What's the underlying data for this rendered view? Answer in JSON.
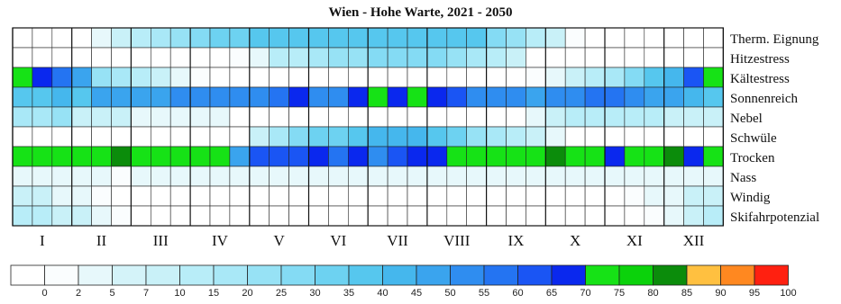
{
  "chart_data": {
    "type": "heatmap",
    "title": "Wien - Hohe Warte, 2021 - 2050",
    "rows": [
      "Therm. Eignung",
      "Hitzestress",
      "Kältestress",
      "Sonnenreich",
      "Nebel",
      "Schwüle",
      "Trocken",
      "Nass",
      "Windig",
      "Skifahrpotenzial"
    ],
    "month_labels": [
      "I",
      "II",
      "III",
      "IV",
      "V",
      "VI",
      "VII",
      "VIII",
      "IX",
      "X",
      "XI",
      "XII"
    ],
    "columns_per_month": 3,
    "values": [
      [
        0,
        0,
        0,
        0,
        4,
        8,
        12,
        18,
        25,
        30,
        35,
        35,
        38,
        38,
        38,
        38,
        38,
        38,
        38,
        38,
        38,
        38,
        38,
        38,
        30,
        25,
        15,
        10,
        2,
        0,
        0,
        0,
        0,
        0,
        0,
        0
      ],
      [
        0,
        0,
        0,
        0,
        0,
        0,
        0,
        0,
        0,
        0,
        0,
        2,
        5,
        12,
        15,
        20,
        25,
        25,
        28,
        30,
        30,
        28,
        25,
        20,
        15,
        8,
        0,
        0,
        0,
        0,
        0,
        0,
        0,
        0,
        0,
        0
      ],
      [
        72,
        68,
        60,
        50,
        25,
        20,
        15,
        10,
        5,
        2,
        0,
        0,
        0,
        0,
        0,
        0,
        0,
        0,
        0,
        0,
        0,
        0,
        0,
        0,
        0,
        0,
        2,
        5,
        10,
        15,
        20,
        30,
        40,
        45,
        65,
        72
      ],
      [
        40,
        40,
        45,
        40,
        50,
        50,
        50,
        50,
        55,
        55,
        55,
        55,
        55,
        58,
        67,
        55,
        55,
        67,
        72,
        67,
        72,
        67,
        65,
        55,
        55,
        55,
        50,
        55,
        55,
        60,
        60,
        55,
        50,
        50,
        45,
        40
      ],
      [
        20,
        20,
        25,
        10,
        10,
        8,
        5,
        5,
        5,
        5,
        5,
        0,
        0,
        0,
        0,
        0,
        0,
        0,
        0,
        0,
        0,
        0,
        0,
        0,
        0,
        0,
        5,
        10,
        15,
        15,
        15,
        12,
        12,
        10,
        10,
        10
      ],
      [
        0,
        0,
        0,
        0,
        0,
        0,
        0,
        0,
        0,
        0,
        0,
        0,
        10,
        20,
        30,
        35,
        35,
        40,
        45,
        45,
        45,
        40,
        35,
        25,
        20,
        15,
        10,
        5,
        0,
        0,
        0,
        0,
        0,
        0,
        0,
        0
      ],
      [
        75,
        75,
        75,
        75,
        75,
        85,
        75,
        75,
        75,
        75,
        75,
        50,
        65,
        65,
        65,
        68,
        60,
        66,
        55,
        65,
        66,
        68,
        75,
        75,
        75,
        75,
        75,
        85,
        75,
        75,
        66,
        75,
        75,
        85,
        66,
        75
      ],
      [
        5,
        5,
        5,
        5,
        5,
        2,
        5,
        5,
        5,
        5,
        5,
        5,
        5,
        5,
        5,
        5,
        5,
        5,
        5,
        5,
        5,
        5,
        5,
        5,
        5,
        5,
        5,
        5,
        5,
        5,
        5,
        5,
        5,
        5,
        5,
        5
      ],
      [
        8,
        8,
        5,
        5,
        2,
        0,
        0,
        0,
        0,
        0,
        0,
        0,
        0,
        0,
        0,
        0,
        0,
        0,
        0,
        0,
        0,
        0,
        0,
        0,
        0,
        0,
        0,
        0,
        0,
        0,
        0,
        2,
        5,
        5,
        8,
        8
      ],
      [
        15,
        15,
        10,
        10,
        5,
        2,
        0,
        0,
        0,
        0,
        0,
        0,
        0,
        0,
        0,
        0,
        0,
        0,
        0,
        0,
        0,
        0,
        0,
        0,
        0,
        0,
        0,
        0,
        0,
        0,
        0,
        0,
        2,
        5,
        10,
        15
      ]
    ],
    "color_scale": {
      "ticks": [
        "0",
        "2",
        "5",
        "7",
        "10",
        "15",
        "20",
        "25",
        "30",
        "35",
        "40",
        "45",
        "50",
        "55",
        "60",
        "65",
        "70",
        "75",
        "80",
        "85",
        "90",
        "95",
        "100"
      ],
      "colors": [
        "#ffffff",
        "#fafdfe",
        "#e7f8fb",
        "#d4f3f9",
        "#c9f1f8",
        "#b8edf8",
        "#a9e8f7",
        "#97e2f5",
        "#84dbf4",
        "#6dd2f1",
        "#56c7ee",
        "#45b7ed",
        "#3aa4ee",
        "#2f8df0",
        "#2474f2",
        "#1a55f4",
        "#0a28ee",
        "#16e216",
        "#0bd20b",
        "#0b8c0b",
        "#ffc040",
        "#ff8820",
        "#ff2010"
      ]
    }
  }
}
